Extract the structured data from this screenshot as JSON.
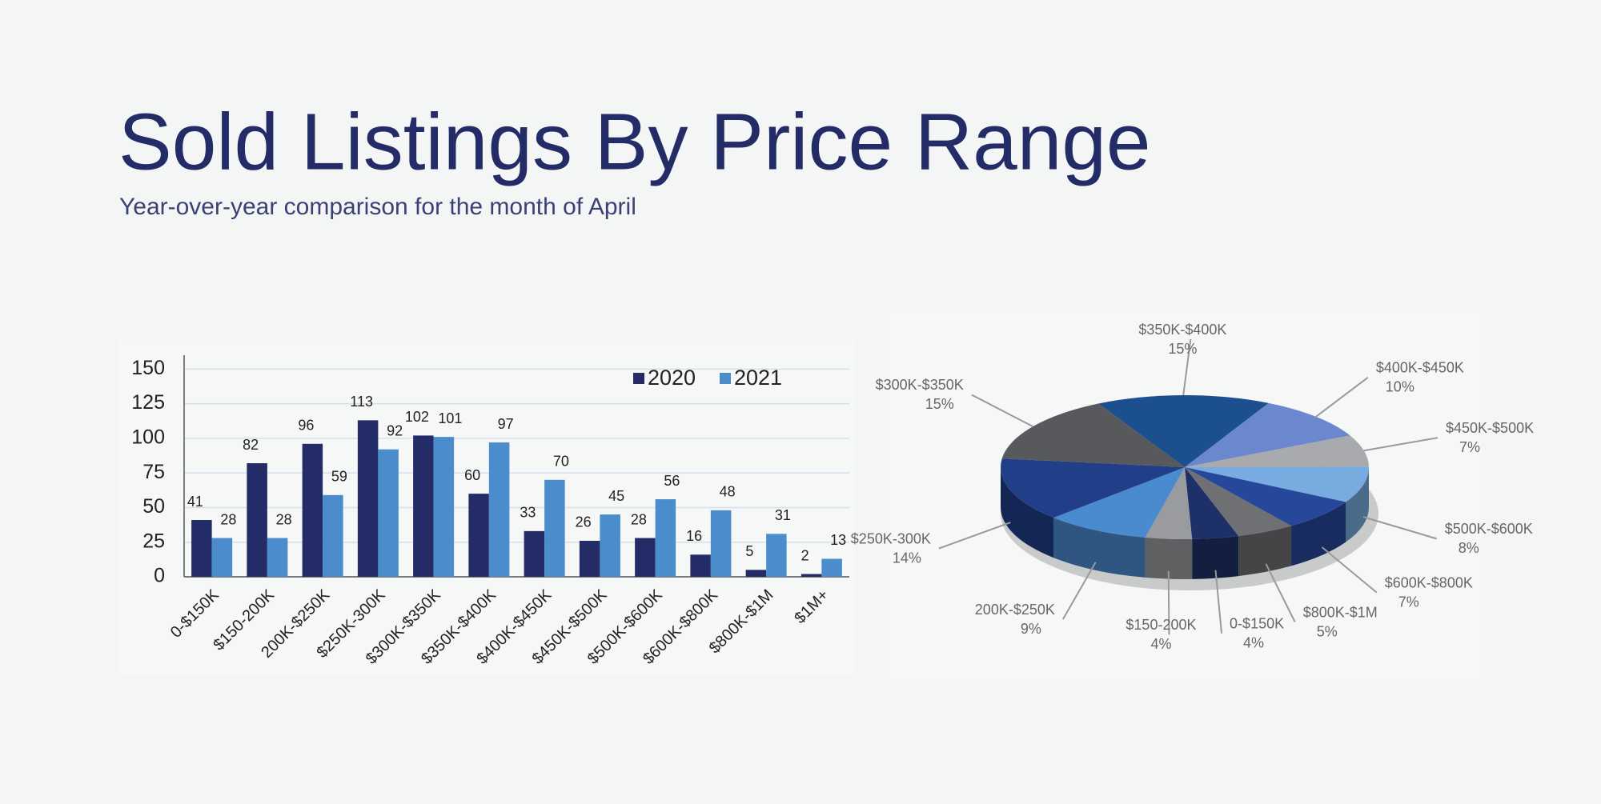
{
  "title": "Sold Listings By Price Range",
  "subtitle": "Year-over-year comparison for the month of April",
  "chart_data": [
    {
      "type": "bar",
      "categories": [
        "0-$150K",
        "$150-200K",
        "200K-$250K",
        "$250K-300K",
        "$300K-$350K",
        "$350K-$400K",
        "$400K-$450K",
        "$450K-$500K",
        "$500K-$600K",
        "$600K-$800K",
        "$800K-$1M",
        "$1M+"
      ],
      "series": [
        {
          "name": "2020",
          "color": "#232c66",
          "values": [
            41,
            82,
            96,
            113,
            102,
            60,
            33,
            26,
            28,
            16,
            5,
            2
          ]
        },
        {
          "name": "2021",
          "color": "#4a8ccc",
          "values": [
            28,
            28,
            59,
            92,
            101,
            97,
            70,
            45,
            56,
            48,
            31,
            13
          ]
        }
      ],
      "ylim": [
        0,
        160
      ],
      "yticks": [
        0,
        25,
        50,
        75,
        100,
        125,
        150
      ],
      "grid": true,
      "legend": "top-right"
    },
    {
      "type": "pie",
      "categories": [
        "$350K-$400K",
        "$400K-$450K",
        "$450K-$500K",
        "$500K-$600K",
        "$600K-$800K",
        "$800K-$1M",
        "0-$150K",
        "$150-200K",
        "200K-$250K",
        "$250K-300K",
        "$300K-$350K"
      ],
      "values": [
        15,
        10,
        7,
        8,
        7,
        5,
        4,
        4,
        9,
        14,
        15
      ],
      "value_labels": [
        "15%",
        "10%",
        "7%",
        "8%",
        "7%",
        "5%",
        "4%",
        "4%",
        "9%",
        "14%",
        "15%"
      ],
      "colors": [
        "#1c4f8e",
        "#6b88cf",
        "#a9aaad",
        "#78abdf",
        "#27479a",
        "#6f7073",
        "#1e3068",
        "#9a9b9e",
        "#4a8bd0",
        "#213f88",
        "#58595c"
      ]
    }
  ]
}
